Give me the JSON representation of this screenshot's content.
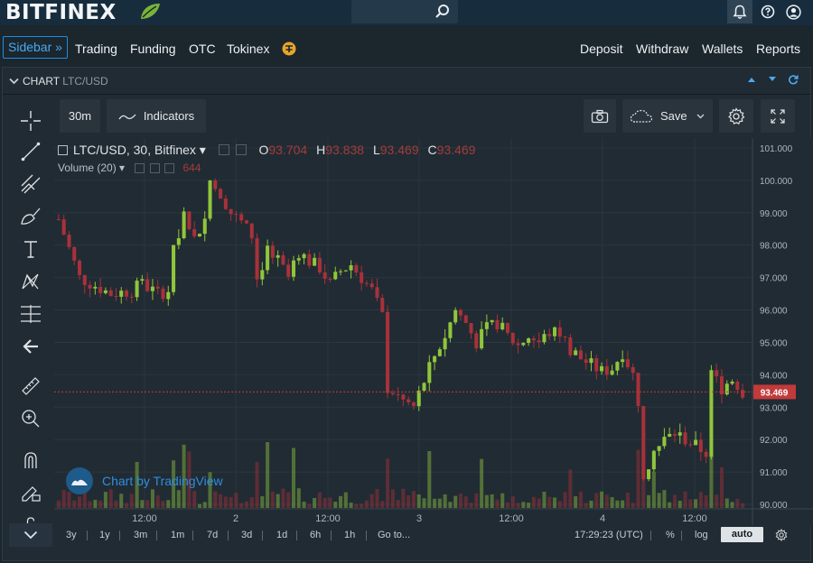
{
  "header": {
    "logo": "BITFINEX",
    "search_placeholder": ""
  },
  "nav": {
    "sidebar_label": "Sidebar »",
    "items": [
      "Trading",
      "Funding",
      "OTC",
      "Tokinex"
    ],
    "right_items": [
      "Deposit",
      "Withdraw",
      "Wallets",
      "Reports"
    ]
  },
  "panel": {
    "title": "CHART",
    "pair": "LTC/USD"
  },
  "toolbar": {
    "interval": "30m",
    "indicators": "Indicators",
    "save": "Save"
  },
  "legend": {
    "symbol": "LTC/USD, 30, Bitfinex",
    "open_label": "O",
    "open": "93.704",
    "high_label": "H",
    "high": "93.838",
    "low_label": "L",
    "low": "93.469",
    "close_label": "C",
    "close": "93.469",
    "volume_label": "Volume (20)",
    "volume_value": "644"
  },
  "watermark": "Chart by TradingView",
  "bottom": {
    "timeframes": [
      "3y",
      "1y",
      "3m",
      "1m",
      "7d",
      "3d",
      "1d",
      "6h",
      "1h",
      "Go to..."
    ],
    "clock": "17:29:23 (UTC)",
    "percent": "%",
    "log": "log",
    "auto": "auto"
  },
  "colors": {
    "up": "#8fc63b",
    "down": "#a8313a",
    "background": "#212b33",
    "grid": "#2c363e",
    "last_price": "#c23a3a"
  },
  "chart_data": {
    "type": "candlestick",
    "x_tick_labels": [
      "12:00",
      "2",
      "12:00",
      "3",
      "12:00",
      "4",
      "12:00"
    ],
    "y_tick_labels": [
      "101.000",
      "100.000",
      "99.000",
      "98.000",
      "97.000",
      "96.000",
      "95.000",
      "94.000",
      "93.000",
      "92.000",
      "91.000",
      "90.000"
    ],
    "ylim": [
      90,
      101
    ],
    "last_price": 93.469,
    "last_price_label": "93.469",
    "close_path": [
      [
        0,
        98.8
      ],
      [
        4,
        97.0
      ],
      [
        10,
        96.5
      ],
      [
        14,
        96.6
      ],
      [
        16,
        96.8
      ],
      [
        19,
        96.5
      ],
      [
        21,
        96.6
      ],
      [
        22,
        97.8
      ],
      [
        24,
        99.0
      ],
      [
        26,
        98.2
      ],
      [
        28,
        98.8
      ],
      [
        29,
        100.0
      ],
      [
        31,
        99.6
      ],
      [
        33,
        99.0
      ],
      [
        35,
        98.7
      ],
      [
        37,
        98.3
      ],
      [
        38,
        97.0
      ],
      [
        40,
        97.8
      ],
      [
        42,
        97.5
      ],
      [
        44,
        97.0
      ],
      [
        46,
        97.8
      ],
      [
        48,
        97.5
      ],
      [
        50,
        97.3
      ],
      [
        52,
        96.8
      ],
      [
        54,
        97.2
      ],
      [
        56,
        97.4
      ],
      [
        58,
        97.0
      ],
      [
        60,
        96.6
      ],
      [
        62,
        95.8
      ],
      [
        63,
        93.6
      ],
      [
        66,
        93.2
      ],
      [
        68,
        93.0
      ],
      [
        70,
        93.8
      ],
      [
        72,
        94.6
      ],
      [
        74,
        95.2
      ],
      [
        76,
        96.0
      ],
      [
        78,
        95.6
      ],
      [
        80,
        95.0
      ],
      [
        82,
        95.4
      ],
      [
        84,
        95.6
      ],
      [
        86,
        95.2
      ],
      [
        88,
        94.9
      ],
      [
        90,
        95.2
      ],
      [
        92,
        95.0
      ],
      [
        94,
        95.3
      ],
      [
        96,
        95.3
      ],
      [
        98,
        94.8
      ],
      [
        100,
        94.5
      ],
      [
        102,
        94.3
      ],
      [
        104,
        94.1
      ],
      [
        106,
        94.2
      ],
      [
        108,
        94.7
      ],
      [
        110,
        94.0
      ],
      [
        111,
        93.2
      ],
      [
        112,
        91.0
      ],
      [
        114,
        91.6
      ],
      [
        116,
        92.0
      ],
      [
        118,
        92.2
      ],
      [
        120,
        92.0
      ],
      [
        122,
        91.8
      ],
      [
        124,
        91.6
      ],
      [
        125,
        94.0
      ],
      [
        127,
        93.6
      ],
      [
        129,
        93.9
      ],
      [
        131,
        93.469
      ]
    ]
  }
}
